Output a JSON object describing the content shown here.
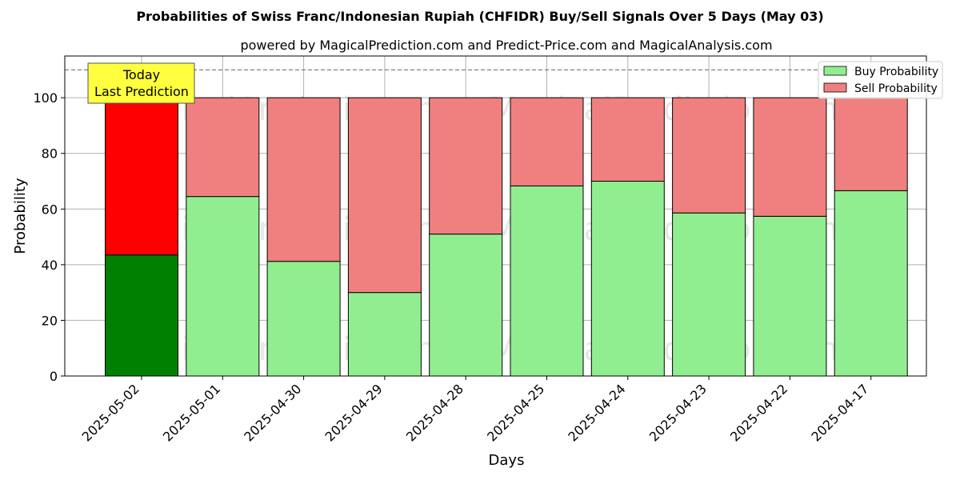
{
  "chart_data": {
    "type": "bar",
    "stacked": true,
    "title": "Probabilities of Swiss Franc/Indonesian Rupiah (CHFIDR) Buy/Sell Signals Over 5 Days (May 03)",
    "subtitle": "powered by MagicalPrediction.com and Predict-Price.com and MagicalAnalysis.com",
    "xlabel": "Days",
    "ylabel": "Probability",
    "ylim": [
      0,
      115
    ],
    "yticks": [
      0,
      20,
      40,
      60,
      80,
      100
    ],
    "grid": true,
    "legend_position": "top-right",
    "categories": [
      "2025-05-02",
      "2025-05-01",
      "2025-04-30",
      "2025-04-29",
      "2025-04-28",
      "2025-04-25",
      "2025-04-24",
      "2025-04-23",
      "2025-04-22",
      "2025-04-17"
    ],
    "series": [
      {
        "name": "Buy Probability",
        "color": "#90ee90",
        "highlight_color": "#008000",
        "values": [
          43.5,
          64.5,
          41.2,
          30.0,
          51.0,
          68.3,
          70.0,
          58.6,
          57.4,
          66.6
        ]
      },
      {
        "name": "Sell Probability",
        "color": "#f08080",
        "highlight_color": "#ff0000",
        "values": [
          56.5,
          35.5,
          58.8,
          70.0,
          49.0,
          31.7,
          30.0,
          41.4,
          42.6,
          33.4
        ]
      }
    ],
    "highlight_index": 0,
    "reference_line": 110,
    "annotation": {
      "line1": "Today",
      "line2": "Last Prediction",
      "color": "#ffff40"
    },
    "watermarks": [
      "MagicalAnalysis.com",
      "MagicalPrediction.com"
    ]
  }
}
